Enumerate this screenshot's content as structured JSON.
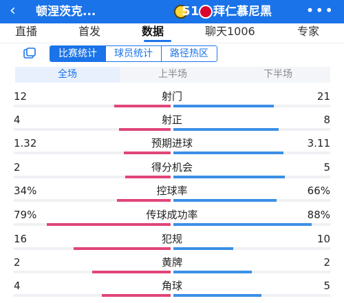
{
  "header": {
    "back_icon": "chevron-left-icon",
    "home_team": "顿涅茨克...",
    "home_goals": "1",
    "score_sep": "-",
    "away_goals": "5",
    "away_team": "拜仁慕尼黑",
    "more_icon": "more-dots-icon"
  },
  "tabs": [
    {
      "label": "直播"
    },
    {
      "label": "首发"
    },
    {
      "label": "数据",
      "active": true
    },
    {
      "label": "聊天1006"
    },
    {
      "label": "专家"
    }
  ],
  "subtabs": [
    "比赛统计",
    "球员统计",
    "路径热区"
  ],
  "periods": [
    "全场",
    "上半场",
    "下半场"
  ],
  "colors": {
    "accent": "#1a73e8",
    "home_bar": "#e0457a",
    "away_bar": "#3b8fe6"
  },
  "stats": [
    {
      "name": "射门",
      "home": "12",
      "away": "21",
      "home_frac": 0.36,
      "away_frac": 0.64
    },
    {
      "name": "射正",
      "home": "4",
      "away": "8",
      "home_frac": 0.33,
      "away_frac": 0.67
    },
    {
      "name": "预期进球",
      "home": "1.32",
      "away": "3.11",
      "home_frac": 0.3,
      "away_frac": 0.7
    },
    {
      "name": "得分机会",
      "home": "2",
      "away": "5",
      "home_frac": 0.29,
      "away_frac": 0.71
    },
    {
      "name": "控球率",
      "home": "34%",
      "away": "66%",
      "home_frac": 0.34,
      "away_frac": 0.66
    },
    {
      "name": "传球成功率",
      "home": "79%",
      "away": "88%",
      "home_frac": 0.79,
      "away_frac": 0.88
    },
    {
      "name": "犯规",
      "home": "16",
      "away": "10",
      "home_frac": 0.62,
      "away_frac": 0.38
    },
    {
      "name": "黄牌",
      "home": "2",
      "away": "2",
      "home_frac": 0.5,
      "away_frac": 0.5
    },
    {
      "name": "角球",
      "home": "4",
      "away": "5",
      "home_frac": 0.44,
      "away_frac": 0.56
    }
  ]
}
